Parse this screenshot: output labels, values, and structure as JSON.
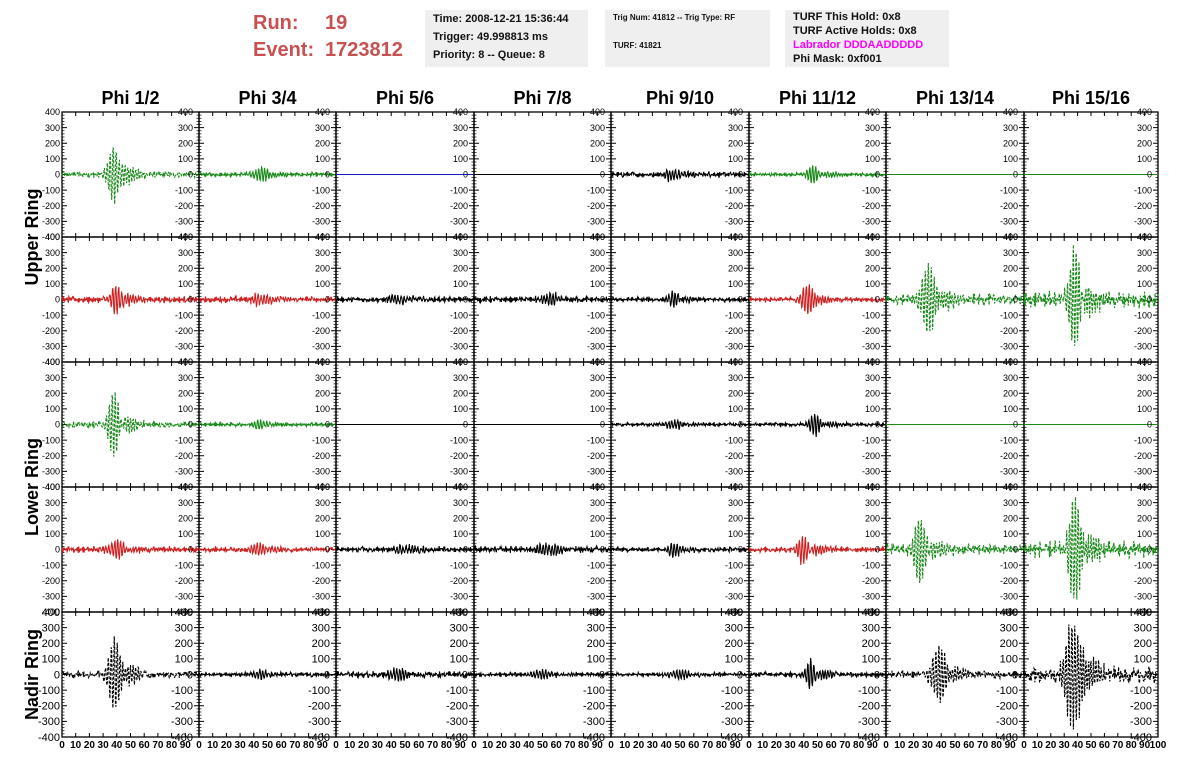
{
  "header": {
    "run_label": "Run:",
    "run_value": "19",
    "event_label": "Event:",
    "event_value": "1723812",
    "time": "Time: 2008-12-21 15:36:44",
    "trigger": "Trigger: 49.998813 ms",
    "priority": "Priority: 8 -- Queue: 8",
    "trig_num": "Trig Num: 41812 -- Trig Type: RF",
    "turf": "TURF: 41821",
    "turf_hold": "TURF This Hold: 0x8",
    "turf_active": "TURF Active Holds: 0x8",
    "labrador": "Labrador DDDAADDDDD",
    "phi_mask": "Phi Mask: 0xf001"
  },
  "colors": {
    "run_text": "#c85050",
    "labrador_text": "#ff00ff",
    "green": "#1a8a1a",
    "red": "#cc2222",
    "black": "#000000",
    "blue": "#1a1acc"
  },
  "chart_data": {
    "type": "line",
    "columns": [
      "Phi 1/2",
      "Phi 3/4",
      "Phi 5/6",
      "Phi 7/8",
      "Phi 9/10",
      "Phi 11/12",
      "Phi 13/14",
      "Phi 15/16"
    ],
    "ring_labels": [
      "Upper Ring",
      "Lower Ring",
      "Nadir Ring"
    ],
    "xlim": [
      0,
      100
    ],
    "ylim": [
      -400,
      400
    ],
    "x_ticks": [
      0,
      10,
      20,
      30,
      40,
      50,
      60,
      70,
      80,
      90,
      100
    ],
    "y_ticks": [
      -400,
      -300,
      -200,
      -100,
      0,
      100,
      200,
      300,
      400
    ],
    "y_tick_labels": [
      "-400",
      "-300",
      "-200",
      "-100",
      "0",
      "100",
      "200",
      "300",
      "400"
    ],
    "x_tick_labels_first": "0 10 20 30 40 50 60 70 80 90",
    "x_tick_labels_last": "0 10 20 30 40 50 60 70 80 90100",
    "rows": [
      [
        {
          "color": "green",
          "dashed": true,
          "amp": 190,
          "center": 38,
          "width": 5,
          "noise": 22
        },
        {
          "color": "green",
          "dashed": false,
          "amp": 45,
          "center": 45,
          "width": 6,
          "noise": 16
        },
        {
          "color": "blue",
          "dashed": false,
          "amp": 0,
          "center": 50,
          "width": 5,
          "noise": 0
        },
        {
          "color": "black",
          "dashed": false,
          "amp": 0,
          "center": 50,
          "width": 5,
          "noise": 0
        },
        {
          "color": "black",
          "dashed": false,
          "amp": 35,
          "center": 45,
          "width": 8,
          "noise": 20
        },
        {
          "color": "green",
          "dashed": false,
          "amp": 55,
          "center": 47,
          "width": 5,
          "noise": 14
        },
        {
          "color": "green",
          "dashed": false,
          "amp": 0,
          "center": 50,
          "width": 5,
          "noise": 0
        },
        {
          "color": "green",
          "dashed": false,
          "amp": 0,
          "center": 50,
          "width": 5,
          "noise": 0
        }
      ],
      [
        {
          "color": "red",
          "dashed": false,
          "amp": 95,
          "center": 40,
          "width": 5,
          "noise": 24
        },
        {
          "color": "red",
          "dashed": false,
          "amp": 40,
          "center": 45,
          "width": 7,
          "noise": 22
        },
        {
          "color": "black",
          "dashed": false,
          "amp": 30,
          "center": 45,
          "width": 8,
          "noise": 20
        },
        {
          "color": "black",
          "dashed": false,
          "amp": 35,
          "center": 55,
          "width": 8,
          "noise": 22
        },
        {
          "color": "black",
          "dashed": false,
          "amp": 45,
          "center": 45,
          "width": 5,
          "noise": 18
        },
        {
          "color": "red",
          "dashed": false,
          "amp": 100,
          "center": 42,
          "width": 5,
          "noise": 18
        },
        {
          "color": "green",
          "dashed": true,
          "amp": 200,
          "center": 30,
          "width": 6,
          "noise": 40
        },
        {
          "color": "green",
          "dashed": true,
          "amp": 330,
          "center": 38,
          "width": 5,
          "noise": 60
        }
      ],
      [
        {
          "color": "green",
          "dashed": true,
          "amp": 200,
          "center": 38,
          "width": 5,
          "noise": 22
        },
        {
          "color": "green",
          "dashed": false,
          "amp": 30,
          "center": 45,
          "width": 6,
          "noise": 14
        },
        {
          "color": "black",
          "dashed": false,
          "amp": 0,
          "center": 50,
          "width": 5,
          "noise": 0
        },
        {
          "color": "black",
          "dashed": false,
          "amp": 0,
          "center": 50,
          "width": 5,
          "noise": 0
        },
        {
          "color": "black",
          "dashed": false,
          "amp": 25,
          "center": 45,
          "width": 8,
          "noise": 14
        },
        {
          "color": "black",
          "dashed": false,
          "amp": 65,
          "center": 48,
          "width": 5,
          "noise": 14
        },
        {
          "color": "green",
          "dashed": false,
          "amp": 0,
          "center": 50,
          "width": 5,
          "noise": 0
        },
        {
          "color": "green",
          "dashed": false,
          "amp": 0,
          "center": 50,
          "width": 5,
          "noise": 0
        }
      ],
      [
        {
          "color": "red",
          "dashed": false,
          "amp": 50,
          "center": 40,
          "width": 8,
          "noise": 22
        },
        {
          "color": "red",
          "dashed": false,
          "amp": 35,
          "center": 45,
          "width": 8,
          "noise": 18
        },
        {
          "color": "black",
          "dashed": false,
          "amp": 30,
          "center": 50,
          "width": 8,
          "noise": 20
        },
        {
          "color": "black",
          "dashed": false,
          "amp": 40,
          "center": 55,
          "width": 9,
          "noise": 24
        },
        {
          "color": "black",
          "dashed": false,
          "amp": 45,
          "center": 45,
          "width": 5,
          "noise": 18
        },
        {
          "color": "red",
          "dashed": false,
          "amp": 95,
          "center": 40,
          "width": 5,
          "noise": 20
        },
        {
          "color": "green",
          "dashed": true,
          "amp": 200,
          "center": 25,
          "width": 6,
          "noise": 40
        },
        {
          "color": "green",
          "dashed": true,
          "amp": 350,
          "center": 37,
          "width": 5,
          "noise": 60
        }
      ],
      [
        {
          "color": "black",
          "dashed": true,
          "amp": 220,
          "center": 38,
          "width": 5,
          "noise": 25
        },
        {
          "color": "black",
          "dashed": false,
          "amp": 25,
          "center": 45,
          "width": 8,
          "noise": 16
        },
        {
          "color": "black",
          "dashed": false,
          "amp": 35,
          "center": 45,
          "width": 8,
          "noise": 22
        },
        {
          "color": "black",
          "dashed": false,
          "amp": 25,
          "center": 50,
          "width": 9,
          "noise": 16
        },
        {
          "color": "black",
          "dashed": false,
          "amp": 25,
          "center": 50,
          "width": 9,
          "noise": 14
        },
        {
          "color": "black",
          "dashed": false,
          "amp": 100,
          "center": 45,
          "width": 4,
          "noise": 18
        },
        {
          "color": "black",
          "dashed": true,
          "amp": 170,
          "center": 38,
          "width": 6,
          "noise": 30
        },
        {
          "color": "black",
          "dashed": true,
          "amp": 380,
          "center": 36,
          "width": 6,
          "noise": 60
        }
      ]
    ]
  }
}
